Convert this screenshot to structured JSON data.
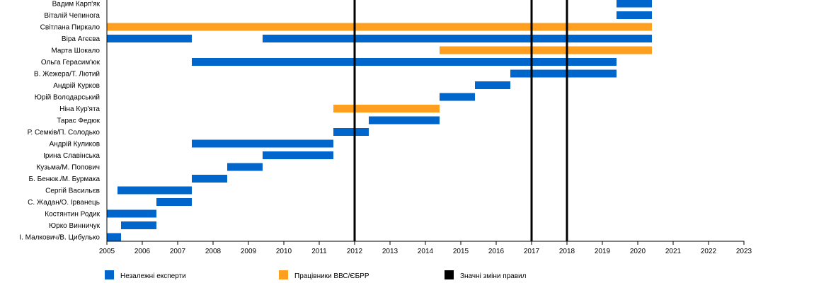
{
  "chart_data": {
    "type": "timeline",
    "title": "",
    "xlabel": "",
    "ylabel": "",
    "xlim": [
      2005,
      2023
    ],
    "x_ticks": [
      "2005",
      "2006",
      "2007",
      "2008",
      "2009",
      "2010",
      "2011",
      "2012",
      "2013",
      "2014",
      "2015",
      "2016",
      "2017",
      "2018",
      "2019",
      "2020",
      "2021",
      "2022",
      "2023"
    ],
    "colors": {
      "independent": "#0066cc",
      "staff": "#ff9f1f",
      "rules": "#000000"
    },
    "legend": [
      {
        "key": "independent",
        "label": "Незалежні експерти"
      },
      {
        "key": "staff",
        "label": "Працівники ВВС/ЄБРР"
      },
      {
        "key": "rules",
        "label": "Значні зміни правил"
      }
    ],
    "legend_position": "bottom",
    "rule_changes": [
      2012,
      2017,
      2018
    ],
    "categories": [
      "Вадим Карп'як",
      "Віталій Чепинога",
      "Світлана Пиркало",
      "Віра Агєєва",
      "Марта Шокало",
      "Ольга Герасим'юк",
      "В. Жежера/Т. Лютий",
      "Андрій Курков",
      "Юрій Володарський",
      "Ніна Кур'ята",
      "Тарас Федюк",
      "Р. Семків/П. Солодько",
      "Андрій Куликов",
      "Ірина Славінська",
      "Кузьма/М. Попович",
      "Б. Бенюк./М. Бурмака",
      "Сергій Васильєв",
      "С. Жадан/О. Ірванець",
      "Костянтин Родик",
      "Юрко Винничук",
      "І. Малкович/В. Цибулько"
    ],
    "bars": [
      {
        "row": 0,
        "start": 2019.4,
        "end": 2020.4,
        "group": "independent"
      },
      {
        "row": 1,
        "start": 2019.4,
        "end": 2020.4,
        "group": "independent"
      },
      {
        "row": 2,
        "start": 2005.0,
        "end": 2020.4,
        "group": "staff"
      },
      {
        "row": 3,
        "start": 2005.0,
        "end": 2007.4,
        "group": "independent"
      },
      {
        "row": 3,
        "start": 2009.4,
        "end": 2020.4,
        "group": "independent"
      },
      {
        "row": 4,
        "start": 2014.4,
        "end": 2020.4,
        "group": "staff"
      },
      {
        "row": 5,
        "start": 2007.4,
        "end": 2019.4,
        "group": "independent"
      },
      {
        "row": 6,
        "start": 2016.4,
        "end": 2019.4,
        "group": "independent"
      },
      {
        "row": 7,
        "start": 2015.4,
        "end": 2016.4,
        "group": "independent"
      },
      {
        "row": 8,
        "start": 2014.4,
        "end": 2015.4,
        "group": "independent"
      },
      {
        "row": 9,
        "start": 2011.4,
        "end": 2014.4,
        "group": "staff"
      },
      {
        "row": 10,
        "start": 2012.4,
        "end": 2014.4,
        "group": "independent"
      },
      {
        "row": 11,
        "start": 2011.4,
        "end": 2012.4,
        "group": "independent"
      },
      {
        "row": 12,
        "start": 2007.4,
        "end": 2011.4,
        "group": "independent"
      },
      {
        "row": 13,
        "start": 2009.4,
        "end": 2011.4,
        "group": "independent"
      },
      {
        "row": 14,
        "start": 2008.4,
        "end": 2009.4,
        "group": "independent"
      },
      {
        "row": 15,
        "start": 2007.4,
        "end": 2008.4,
        "group": "independent"
      },
      {
        "row": 16,
        "start": 2005.3,
        "end": 2007.4,
        "group": "independent"
      },
      {
        "row": 17,
        "start": 2006.4,
        "end": 2007.4,
        "group": "independent"
      },
      {
        "row": 18,
        "start": 2005.0,
        "end": 2006.4,
        "group": "independent"
      },
      {
        "row": 19,
        "start": 2005.4,
        "end": 2006.4,
        "group": "independent"
      },
      {
        "row": 20,
        "start": 2005.0,
        "end": 2005.4,
        "group": "independent"
      }
    ]
  }
}
